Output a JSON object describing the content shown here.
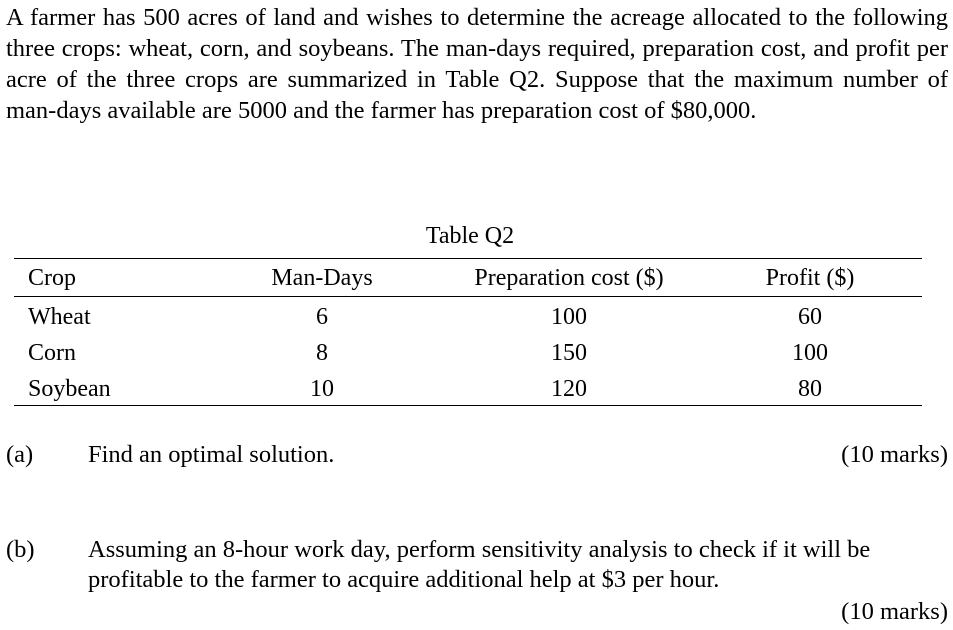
{
  "intro": "A farmer has 500 acres of land and wishes to determine the acreage allocated to the following three crops: wheat, corn, and soybeans. The man-days required, preparation cost, and profit per acre of the three crops are summarized in Table Q2. Suppose that the maximum number of man-days available are 5000 and the farmer has preparation cost of $80,000.",
  "table": {
    "caption": "Table Q2",
    "headers": {
      "crop": "Crop",
      "man_days": "Man-Days",
      "prep_cost": "Preparation cost ($)",
      "profit": "Profit ($)"
    },
    "rows": [
      {
        "crop": "Wheat",
        "man_days": "6",
        "prep_cost": "100",
        "profit": "60"
      },
      {
        "crop": "Corn",
        "man_days": "8",
        "prep_cost": "150",
        "profit": "100"
      },
      {
        "crop": "Soybean",
        "man_days": "10",
        "prep_cost": "120",
        "profit": "80"
      }
    ]
  },
  "questions": [
    {
      "label": "(a)",
      "text": "Find an optimal solution.",
      "marks": "(10 marks)"
    },
    {
      "label": "(b)",
      "text": "Assuming an 8-hour work day, perform sensitivity analysis to check if it will be profitable to the farmer to acquire additional help at $3 per hour.",
      "marks": "(10 marks)"
    }
  ]
}
